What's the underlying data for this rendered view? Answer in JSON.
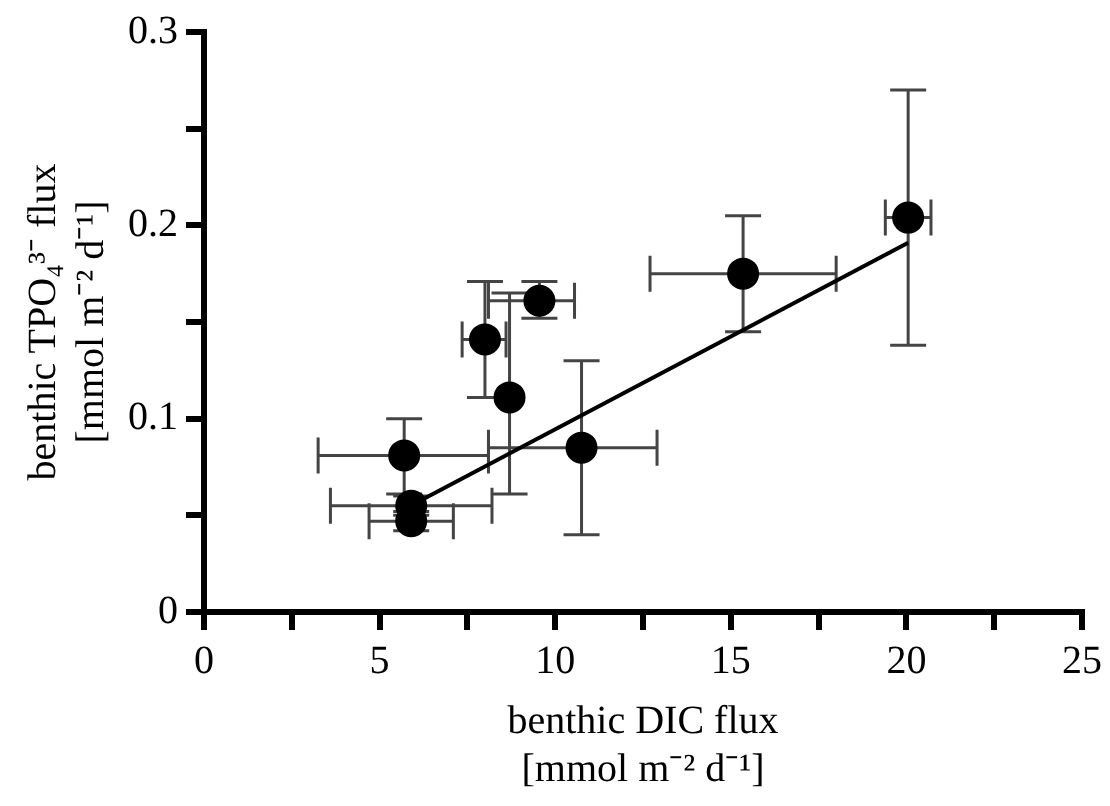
{
  "chart_data": {
    "type": "scatter",
    "xlabel": "benthic DIC flux\n[mmol m⁻² d⁻¹]",
    "ylabel": "benthic TPO₄³⁻ flux\n[mmol m⁻² d⁻¹]",
    "xlim": [
      0,
      25
    ],
    "xticks": [
      0,
      {
        "value": 2.5,
        "label": null
      },
      5,
      {
        "value": 7.5,
        "label": null
      },
      10,
      {
        "value": 12.5,
        "label": null
      },
      15,
      {
        "value": 17.5,
        "label": null
      },
      20,
      {
        "value": 22.5,
        "label": null
      },
      25
    ],
    "ylim": [
      0,
      0.3
    ],
    "yticks": [
      0,
      {
        "value": 0.05,
        "label": null
      },
      0.1,
      {
        "value": 0.15,
        "label": null
      },
      0.2,
      {
        "value": 0.25,
        "label": null
      },
      0.3
    ],
    "grid": false,
    "legend": false,
    "series": [
      {
        "marker": "circle",
        "color": "#000000",
        "x": [
          5.7,
          5.9,
          5.9,
          8.0,
          8.7,
          9.55,
          10.75,
          15.35,
          20.05
        ],
        "values": [
          0.081,
          0.055,
          0.047,
          0.141,
          0.111,
          0.161,
          0.085,
          0.175,
          0.204
        ],
        "errors": [
          [
            0.061,
            0.1
          ],
          0.005,
          0.005,
          [
            0.111,
            0.171
          ],
          [
            0.061,
            0.165
          ],
          [
            0.152,
            0.171
          ],
          [
            0.04,
            0.13
          ],
          [
            0.145,
            0.205
          ],
          [
            0.138,
            0.27
          ]
        ],
        "xerrors": [
          [
            3.25,
            8.1
          ],
          [
            3.6,
            8.2
          ],
          [
            4.7,
            7.1
          ],
          [
            7.35,
            8.6
          ],
          null,
          [
            8.1,
            10.55
          ],
          [
            8.1,
            12.9
          ],
          [
            12.7,
            18.0
          ],
          [
            19.4,
            20.7
          ]
        ]
      },
      {
        "type": "line",
        "marker": "none",
        "line_style": "solid",
        "color": "#000000",
        "x": [
          6.1,
          20.05
        ],
        "values": [
          0.057,
          0.191
        ]
      }
    ]
  }
}
